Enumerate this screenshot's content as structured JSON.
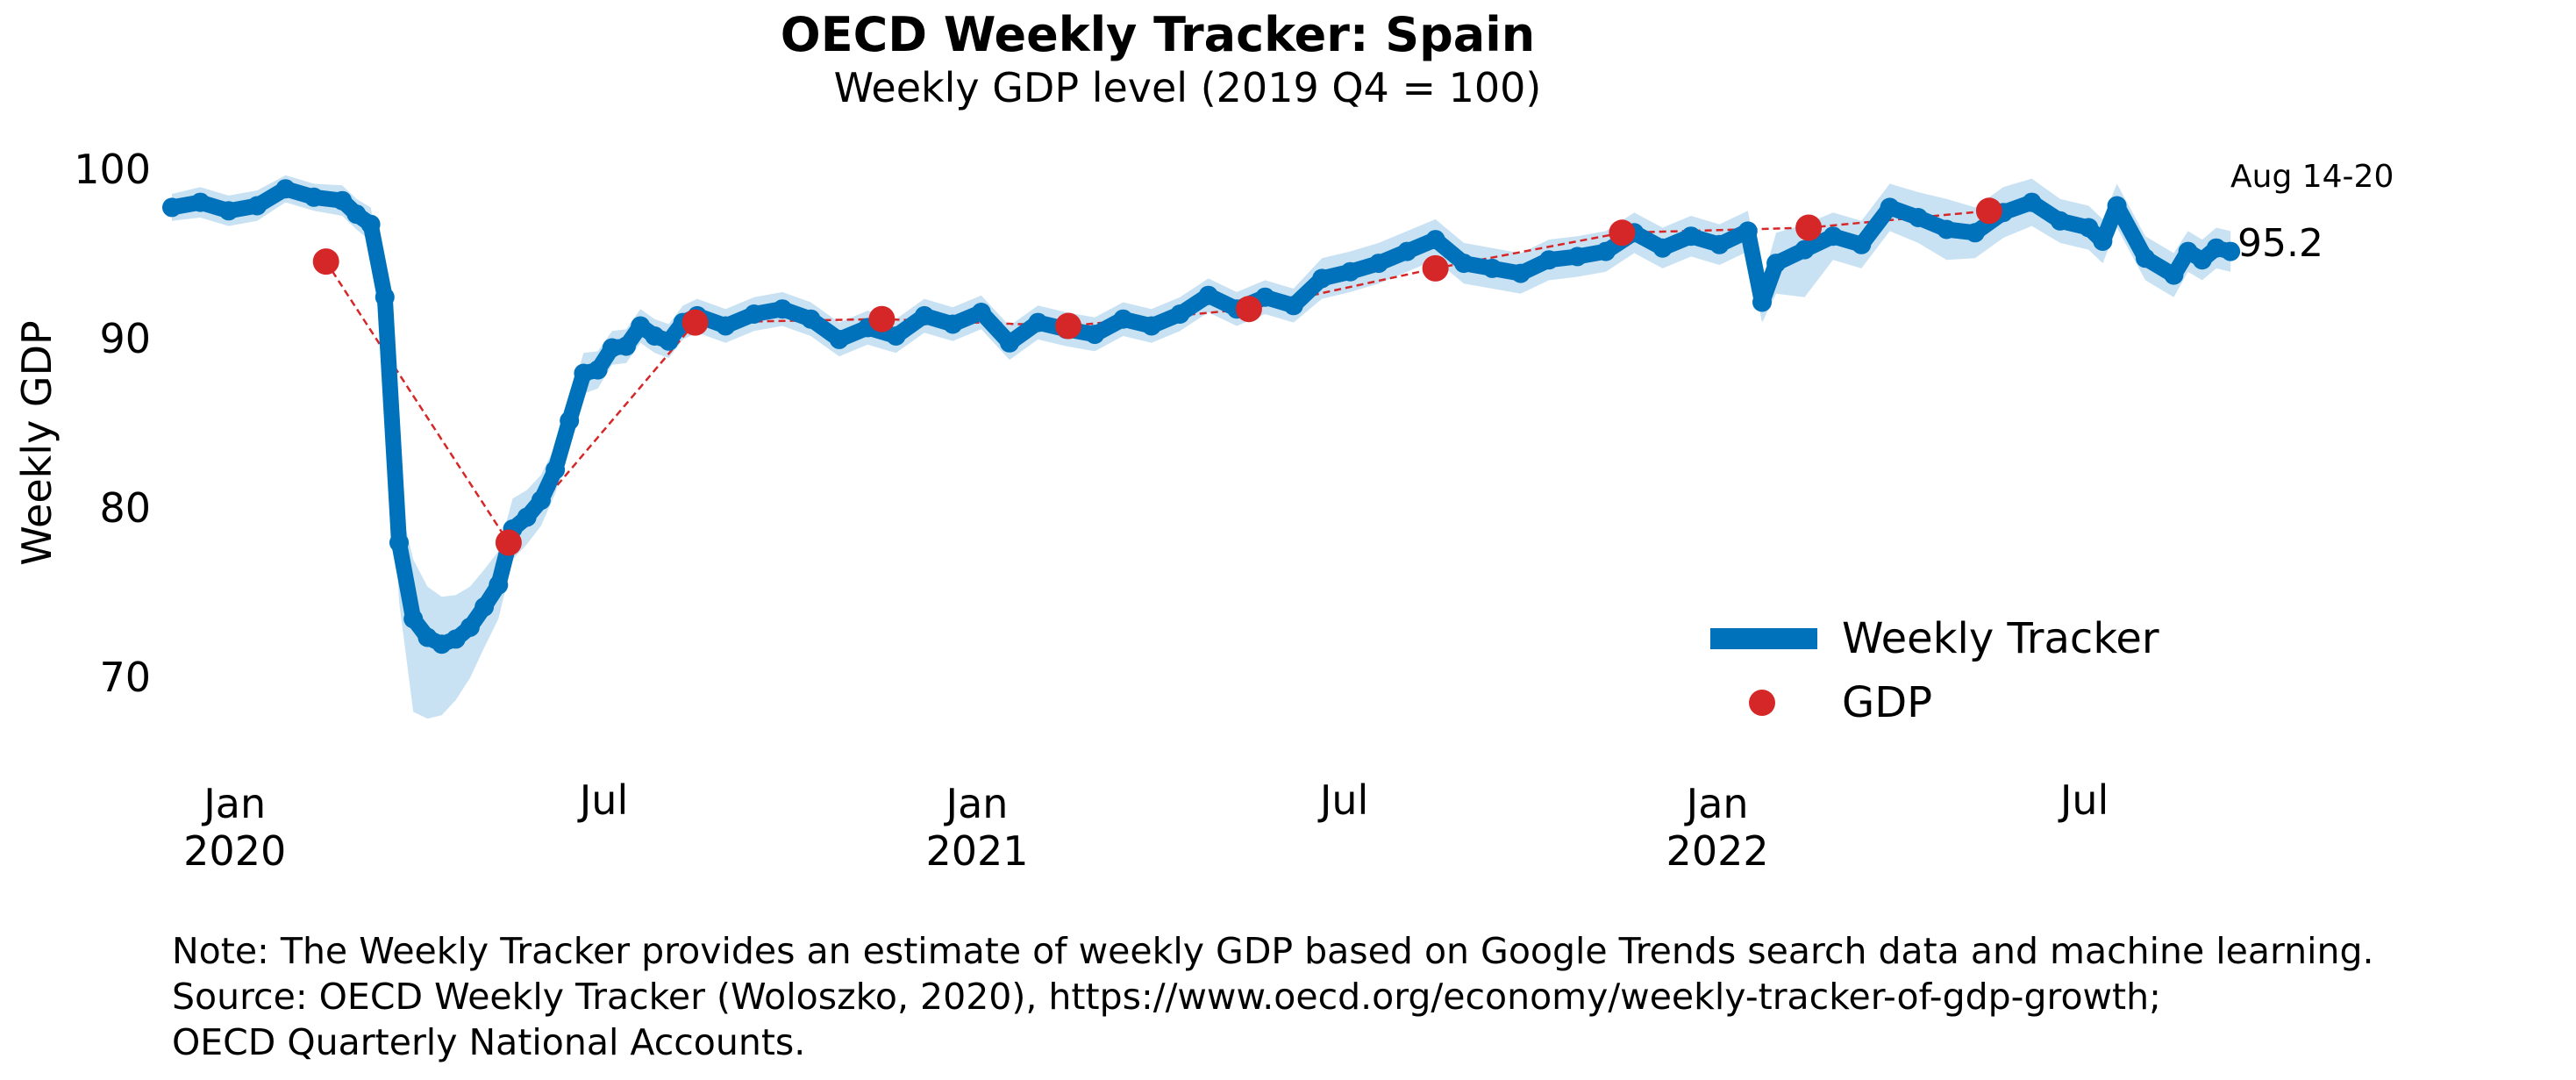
{
  "chart_data": {
    "type": "line",
    "title": "OECD Weekly Tracker: Spain",
    "subtitle": "Weekly GDP level (2019 Q4 = 100)",
    "ylabel": "Weekly GDP",
    "xlabel": "",
    "ylim": [
      66,
      101.5
    ],
    "xlim": [
      "2019-12-01",
      "2022-09-01"
    ],
    "yticks": [
      70,
      80,
      90,
      100
    ],
    "xticks": [
      {
        "date": "2020-01-01",
        "label": "Jan",
        "year": "2020"
      },
      {
        "date": "2020-07-01",
        "label": "Jul",
        "year": ""
      },
      {
        "date": "2021-01-01",
        "label": "Jan",
        "year": "2021"
      },
      {
        "date": "2021-07-01",
        "label": "Jul",
        "year": ""
      },
      {
        "date": "2022-01-01",
        "label": "Jan",
        "year": "2022"
      },
      {
        "date": "2022-07-01",
        "label": "Jul",
        "year": ""
      }
    ],
    "grid": false,
    "legend_position": "bottom-right",
    "colors": {
      "tracker": "#0072bb",
      "band": "#c9e2f3",
      "gdp": "#d62728"
    },
    "series": [
      {
        "name": "Weekly Tracker",
        "style": "thick-line",
        "points": [
          [
            "2019-12-01",
            97.8
          ],
          [
            "2019-12-15",
            98.1
          ],
          [
            "2019-12-29",
            97.6
          ],
          [
            "2020-01-12",
            97.9
          ],
          [
            "2020-01-26",
            98.9
          ],
          [
            "2020-02-09",
            98.4
          ],
          [
            "2020-02-23",
            98.2
          ],
          [
            "2020-03-01",
            97.4
          ],
          [
            "2020-03-08",
            96.8
          ],
          [
            "2020-03-15",
            92.5
          ],
          [
            "2020-03-22",
            78.0
          ],
          [
            "2020-03-29",
            73.5
          ],
          [
            "2020-04-05",
            72.4
          ],
          [
            "2020-04-12",
            72.0
          ],
          [
            "2020-04-19",
            72.3
          ],
          [
            "2020-04-26",
            73.0
          ],
          [
            "2020-05-03",
            74.2
          ],
          [
            "2020-05-10",
            75.5
          ],
          [
            "2020-05-17",
            78.8
          ],
          [
            "2020-05-24",
            79.5
          ],
          [
            "2020-05-31",
            80.5
          ],
          [
            "2020-06-07",
            82.3
          ],
          [
            "2020-06-14",
            85.2
          ],
          [
            "2020-06-21",
            88.0
          ],
          [
            "2020-06-28",
            88.2
          ],
          [
            "2020-07-05",
            89.5
          ],
          [
            "2020-07-12",
            89.6
          ],
          [
            "2020-07-19",
            90.8
          ],
          [
            "2020-07-26",
            90.2
          ],
          [
            "2020-08-02",
            89.9
          ],
          [
            "2020-08-09",
            91.0
          ],
          [
            "2020-08-16",
            91.4
          ],
          [
            "2020-08-30",
            90.8
          ],
          [
            "2020-09-13",
            91.5
          ],
          [
            "2020-09-27",
            91.8
          ],
          [
            "2020-10-11",
            91.2
          ],
          [
            "2020-10-25",
            90.0
          ],
          [
            "2020-11-08",
            90.7
          ],
          [
            "2020-11-22",
            90.2
          ],
          [
            "2020-12-06",
            91.4
          ],
          [
            "2020-12-20",
            90.9
          ],
          [
            "2021-01-03",
            91.6
          ],
          [
            "2021-01-17",
            89.8
          ],
          [
            "2021-01-31",
            91.0
          ],
          [
            "2021-02-14",
            90.6
          ],
          [
            "2021-02-28",
            90.3
          ],
          [
            "2021-03-14",
            91.2
          ],
          [
            "2021-03-28",
            90.8
          ],
          [
            "2021-04-11",
            91.5
          ],
          [
            "2021-04-25",
            92.6
          ],
          [
            "2021-05-09",
            91.8
          ],
          [
            "2021-05-23",
            92.5
          ],
          [
            "2021-06-06",
            92.0
          ],
          [
            "2021-06-20",
            93.6
          ],
          [
            "2021-07-04",
            94.0
          ],
          [
            "2021-07-18",
            94.5
          ],
          [
            "2021-08-01",
            95.2
          ],
          [
            "2021-08-15",
            95.9
          ],
          [
            "2021-08-29",
            94.5
          ],
          [
            "2021-09-12",
            94.2
          ],
          [
            "2021-09-26",
            93.9
          ],
          [
            "2021-10-10",
            94.7
          ],
          [
            "2021-10-24",
            94.9
          ],
          [
            "2021-11-07",
            95.2
          ],
          [
            "2021-11-21",
            96.3
          ],
          [
            "2021-12-05",
            95.4
          ],
          [
            "2021-12-19",
            96.1
          ],
          [
            "2022-01-02",
            95.6
          ],
          [
            "2022-01-16",
            96.4
          ],
          [
            "2022-01-23",
            92.2
          ],
          [
            "2022-01-30",
            94.5
          ],
          [
            "2022-02-13",
            95.3
          ],
          [
            "2022-02-27",
            96.1
          ],
          [
            "2022-03-13",
            95.6
          ],
          [
            "2022-03-27",
            97.8
          ],
          [
            "2022-04-10",
            97.2
          ],
          [
            "2022-04-24",
            96.5
          ],
          [
            "2022-05-08",
            96.3
          ],
          [
            "2022-05-22",
            97.5
          ],
          [
            "2022-06-05",
            98.1
          ],
          [
            "2022-06-19",
            97.0
          ],
          [
            "2022-07-03",
            96.6
          ],
          [
            "2022-07-10",
            95.8
          ],
          [
            "2022-07-17",
            97.9
          ],
          [
            "2022-07-31",
            94.8
          ],
          [
            "2022-08-14",
            93.8
          ],
          [
            "2022-08-21",
            95.2
          ],
          [
            "2022-08-28",
            94.7
          ],
          [
            "2022-09-04",
            95.4
          ],
          [
            "2022-09-11",
            95.2
          ]
        ]
      },
      {
        "name": "GDP",
        "style": "markers-dashed",
        "points": [
          [
            "2020-02-15",
            94.6
          ],
          [
            "2020-05-15",
            78.0
          ],
          [
            "2020-08-15",
            91.0
          ],
          [
            "2020-11-15",
            91.2
          ],
          [
            "2021-02-15",
            90.8
          ],
          [
            "2021-05-15",
            91.8
          ],
          [
            "2021-08-15",
            94.2
          ],
          [
            "2021-11-15",
            96.3
          ],
          [
            "2022-02-15",
            96.6
          ],
          [
            "2022-05-15",
            97.6
          ]
        ]
      }
    ],
    "band": {
      "upper_offsets": [
        0.8,
        0.9,
        0.9,
        0.9,
        0.8,
        0.8,
        0.9,
        0.9,
        1.0,
        1.5,
        2.5,
        3.5,
        3.0,
        2.8,
        2.6,
        2.4,
        2.2,
        2.0,
        1.8,
        1.6,
        1.5,
        1.4,
        1.3,
        1.2,
        1.1,
        1.0,
        1.0,
        1.0,
        1.0,
        1.0,
        1.0,
        1.0,
        1.0,
        1.0,
        1.0,
        1.0,
        1.0,
        1.0,
        1.0,
        1.0,
        1.0,
        1.0,
        1.0,
        1.0,
        1.0,
        1.0,
        1.0,
        1.0,
        1.0,
        1.0,
        1.0,
        1.0,
        1.0,
        1.2,
        1.2,
        1.2,
        1.2,
        1.2,
        1.2,
        1.2,
        1.2,
        1.2,
        1.2,
        1.2,
        1.2,
        1.2,
        1.2,
        1.2,
        1.2,
        1.2,
        1.8,
        1.5,
        1.4,
        1.4,
        1.4,
        1.5,
        1.8,
        1.5,
        1.5,
        1.4,
        1.3,
        1.3,
        1.3,
        1.3,
        1.3,
        1.3,
        1.2,
        1.2,
        1.2,
        1.2,
        1.2
      ],
      "lower_offsets": [
        0.8,
        0.9,
        0.9,
        0.9,
        0.8,
        0.8,
        0.9,
        0.9,
        1.0,
        1.8,
        3.5,
        5.5,
        4.8,
        4.2,
        3.6,
        3.0,
        2.4,
        2.0,
        1.8,
        1.6,
        1.5,
        1.4,
        1.3,
        1.2,
        1.1,
        1.0,
        1.0,
        1.0,
        1.0,
        1.0,
        1.0,
        1.0,
        1.0,
        1.0,
        1.0,
        1.0,
        1.0,
        1.0,
        1.0,
        1.0,
        1.0,
        1.0,
        1.0,
        1.0,
        1.0,
        1.0,
        1.0,
        1.0,
        1.0,
        1.0,
        1.0,
        1.0,
        1.0,
        1.2,
        1.2,
        1.2,
        1.2,
        1.2,
        1.2,
        1.2,
        1.2,
        1.2,
        1.2,
        1.2,
        1.2,
        1.2,
        1.2,
        1.2,
        1.2,
        1.2,
        1.8,
        2.8,
        1.4,
        1.4,
        1.4,
        1.5,
        1.8,
        1.5,
        1.5,
        1.4,
        1.3,
        1.3,
        1.3,
        1.3,
        1.3,
        1.3,
        1.2,
        1.2,
        1.2,
        1.2,
        1.2
      ]
    },
    "annotations": [
      {
        "text": "Aug 14-20",
        "role": "latest-week"
      },
      {
        "text": "95.2",
        "role": "latest-value"
      }
    ],
    "notes": [
      "Note: The Weekly Tracker provides an estimate of weekly GDP based on Google Trends search data and machine learning.",
      "Source: OECD Weekly Tracker (Woloszko, 2020), https://www.oecd.org/economy/weekly-tracker-of-gdp-growth;",
      "OECD Quarterly National Accounts."
    ]
  }
}
